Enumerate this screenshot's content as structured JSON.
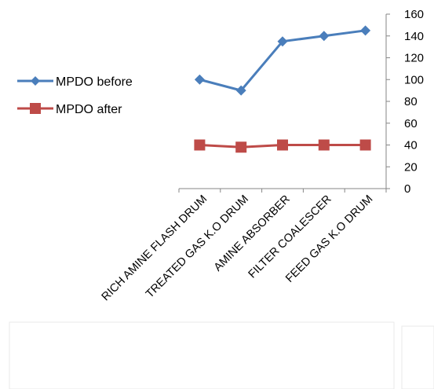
{
  "chart_data": {
    "type": "line",
    "categories": [
      "RICH AMINE FLASH DRUM",
      "TREATED GAS K.O DRUM",
      "AMINE ABSORBER",
      "FILTER COALESCER",
      "FEED GAS K.O DRUM"
    ],
    "series": [
      {
        "name": "MPDO before",
        "values": [
          100,
          90,
          135,
          140,
          145
        ],
        "color": "#4a7ebb",
        "marker": "diamond"
      },
      {
        "name": "MPDO after",
        "values": [
          40,
          38,
          40,
          40,
          40
        ],
        "color": "#be4b48",
        "marker": "square"
      }
    ],
    "yticks": [
      "0",
      "20",
      "40",
      "60",
      "80",
      "100",
      "120",
      "140",
      "160"
    ],
    "ylim": [
      0,
      160
    ],
    "yaxis_side": "right",
    "legend_position": "left",
    "grid": false
  }
}
